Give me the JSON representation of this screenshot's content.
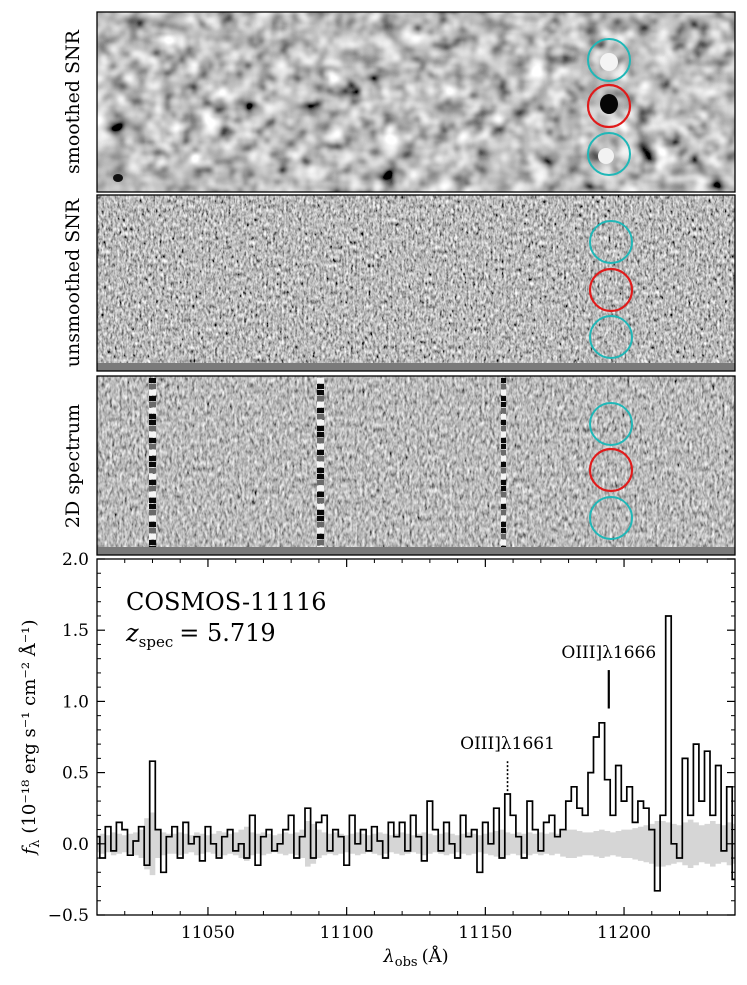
{
  "panels": [
    {
      "label": "smoothed SNR"
    },
    {
      "label": "unsmoothed SNR"
    },
    {
      "label": "2D spectrum"
    }
  ],
  "colors": {
    "aperture_center": "#e01b1b",
    "aperture_side": "#20b7b7",
    "error_band": "#d6d6d6",
    "spectrum": "#000000"
  },
  "object": {
    "name": "COSMOS-11116",
    "redshift_label": "z",
    "redshift_sub": "spec",
    "redshift_value": "= 5.719"
  },
  "lines": [
    {
      "label": "OIII]λ1661",
      "wavelength": 11158,
      "style": "dotted",
      "y_start": 0.37,
      "y_end": 0.58
    },
    {
      "label": "OIII]λ1666",
      "wavelength": 11194.5,
      "style": "solid",
      "y_start": 0.95,
      "y_end": 1.22
    }
  ],
  "axes": {
    "xlabel": "λ",
    "xlabel_sub": "obs",
    "xlabel_unit": "(Å)",
    "ylabel": "f",
    "ylabel_sub": "λ",
    "ylabel_unit": "(10⁻¹⁸ erg s⁻¹ cm⁻² Å⁻¹)"
  },
  "chart_data": {
    "type": "line",
    "xlim": [
      11010,
      11240
    ],
    "ylim": [
      -0.5,
      2.0
    ],
    "xticks": [
      11050,
      11100,
      11150,
      11200
    ],
    "xtick_labels": [
      "11050",
      "11100",
      "11150",
      "11200"
    ],
    "yticks": [
      -0.5,
      0.0,
      0.5,
      1.0,
      1.5,
      2.0
    ],
    "ytick_labels": [
      "−0.5",
      "0.0",
      "0.5",
      "1.0",
      "1.5",
      "2.0"
    ],
    "series": [
      {
        "drawstyle": "steps-mid",
        "x": [
          11010,
          11012,
          11014,
          11016,
          11018,
          11020,
          11022,
          11024,
          11026,
          11028,
          11030,
          11032,
          11034,
          11036,
          11038,
          11040,
          11042,
          11044,
          11046,
          11048,
          11050,
          11052,
          11054,
          11056,
          11058,
          11060,
          11062,
          11064,
          11066,
          11068,
          11070,
          11072,
          11074,
          11076,
          11078,
          11080,
          11082,
          11084,
          11086,
          11088,
          11090,
          11092,
          11094,
          11096,
          11098,
          11100,
          11102,
          11104,
          11106,
          11108,
          11110,
          11112,
          11114,
          11116,
          11118,
          11120,
          11122,
          11124,
          11126,
          11128,
          11130,
          11132,
          11134,
          11136,
          11138,
          11140,
          11142,
          11144,
          11146,
          11148,
          11150,
          11152,
          11154,
          11156,
          11158,
          11160,
          11162,
          11164,
          11166,
          11168,
          11170,
          11172,
          11174,
          11176,
          11178,
          11180,
          11182,
          11184,
          11186,
          11188,
          11190,
          11192,
          11194,
          11196,
          11198,
          11200,
          11202,
          11204,
          11206,
          11208,
          11210,
          11212,
          11214,
          11216,
          11218,
          11220,
          11222,
          11224,
          11226,
          11228,
          11230,
          11232,
          11234,
          11236,
          11238,
          11240
        ],
        "y": [
          0.05,
          -0.1,
          0.12,
          -0.05,
          0.15,
          0.1,
          -0.08,
          0.02,
          0.12,
          -0.15,
          0.58,
          0.1,
          -0.2,
          0.05,
          0.12,
          -0.1,
          0.15,
          0.0,
          0.05,
          -0.12,
          0.12,
          0.0,
          -0.1,
          0.05,
          0.1,
          -0.05,
          0.0,
          -0.1,
          0.2,
          -0.15,
          0.05,
          0.1,
          -0.05,
          0.0,
          0.1,
          0.2,
          -0.1,
          0.05,
          0.25,
          -0.1,
          0.15,
          0.2,
          -0.05,
          0.1,
          0.05,
          -0.15,
          0.2,
          0.0,
          0.1,
          -0.05,
          0.12,
          0.02,
          -0.1,
          0.15,
          0.05,
          0.15,
          -0.05,
          0.2,
          0.05,
          -0.12,
          0.3,
          0.1,
          -0.05,
          0.15,
          0.0,
          -0.1,
          0.2,
          0.05,
          0.1,
          -0.2,
          0.15,
          0.0,
          0.25,
          -0.1,
          0.35,
          0.2,
          0.05,
          -0.1,
          0.3,
          0.1,
          -0.05,
          0.15,
          0.2,
          0.05,
          0.1,
          0.3,
          0.4,
          0.25,
          0.2,
          0.5,
          0.75,
          0.85,
          0.45,
          0.2,
          0.55,
          0.3,
          0.4,
          0.15,
          0.3,
          0.25,
          0.1,
          -0.33,
          0.2,
          1.6,
          0.0,
          -0.1,
          0.6,
          0.2,
          0.7,
          0.3,
          0.65,
          0.2,
          0.55,
          -0.05,
          0.4,
          -0.25
        ],
        "err": [
          0.06,
          0.07,
          0.06,
          0.08,
          0.07,
          0.06,
          0.07,
          0.08,
          0.1,
          0.18,
          0.22,
          0.1,
          0.08,
          0.07,
          0.07,
          0.08,
          0.07,
          0.06,
          0.08,
          0.07,
          0.06,
          0.07,
          0.09,
          0.08,
          0.07,
          0.08,
          0.1,
          0.12,
          0.08,
          0.07,
          0.08,
          0.07,
          0.06,
          0.07,
          0.08,
          0.07,
          0.08,
          0.1,
          0.16,
          0.14,
          0.1,
          0.08,
          0.07,
          0.08,
          0.07,
          0.06,
          0.07,
          0.08,
          0.07,
          0.06,
          0.07,
          0.08,
          0.07,
          0.06,
          0.07,
          0.08,
          0.07,
          0.06,
          0.07,
          0.08,
          0.07,
          0.06,
          0.07,
          0.08,
          0.07,
          0.06,
          0.07,
          0.08,
          0.07,
          0.06,
          0.07,
          0.08,
          0.09,
          0.1,
          0.08,
          0.07,
          0.08,
          0.07,
          0.08,
          0.07,
          0.08,
          0.07,
          0.08,
          0.07,
          0.09,
          0.1,
          0.1,
          0.09,
          0.08,
          0.08,
          0.09,
          0.1,
          0.09,
          0.08,
          0.09,
          0.1,
          0.1,
          0.11,
          0.12,
          0.13,
          0.14,
          0.16,
          0.16,
          0.15,
          0.14,
          0.13,
          0.15,
          0.17,
          0.15,
          0.13,
          0.14,
          0.16,
          0.14,
          0.13,
          0.15,
          0.14
        ]
      }
    ]
  }
}
